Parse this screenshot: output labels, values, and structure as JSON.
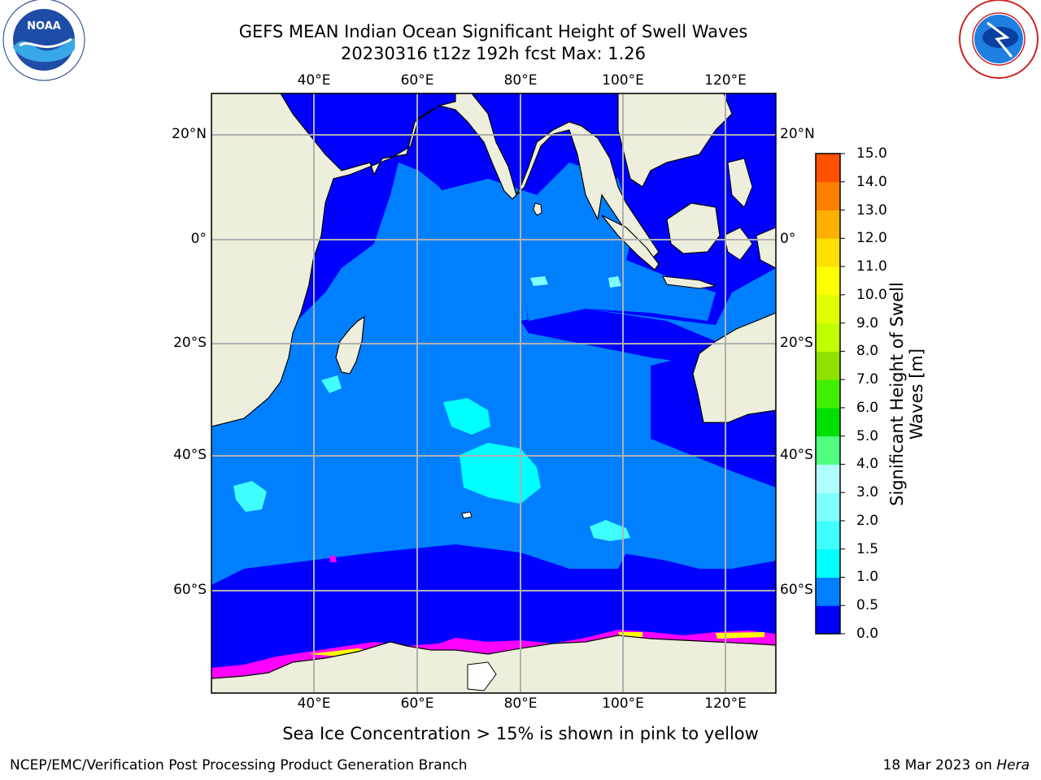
{
  "header": {
    "title_line1": "GEFS MEAN Indian Ocean Significant Height of Swell Waves",
    "title_line2": "20230316 t12z 192h fcst   Max: 1.26"
  },
  "logos": {
    "left": {
      "name": "noaa-logo",
      "text": "NOAA",
      "ring_text": "NATIONAL OCEANIC AND ATMOSPHERIC ADMINISTRATION · U.S. DEPARTMENT OF COMMERCE"
    },
    "right": {
      "name": "nws-logo",
      "ring_text": "NATIONAL WEATHER SERVICE"
    }
  },
  "map": {
    "lon_ticks": [
      "40°E",
      "60°E",
      "80°E",
      "100°E",
      "120°E"
    ],
    "lat_ticks_left": [
      "20°N",
      "0°",
      "20°S",
      "40°S",
      "60°S"
    ],
    "lat_ticks_right": [
      "20°N",
      "0°",
      "20°S",
      "40°S",
      "60°S"
    ],
    "colors": {
      "land": "#eeeedc",
      "ocean_deep": "#0000ff",
      "ocean_mid": "#0080ff",
      "ocean_high": "#00ffff",
      "ice": "#ff00ff"
    }
  },
  "colorbar": {
    "title": "Significant Height of Swell Waves [m]",
    "ticks": [
      "0.0",
      "0.5",
      "1.0",
      "1.5",
      "2.0",
      "3.0",
      "4.0",
      "5.0",
      "6.0",
      "7.0",
      "8.0",
      "9.0",
      "10.0",
      "11.0",
      "12.0",
      "13.0",
      "14.0",
      "15.0"
    ],
    "colors": [
      "#0000ff",
      "#0080ff",
      "#00ffff",
      "#40ffff",
      "#80ffff",
      "#b0ffff",
      "#50ff80",
      "#00e000",
      "#40f000",
      "#90e000",
      "#c0ff00",
      "#e0ff00",
      "#ffff00",
      "#ffe000",
      "#ffb000",
      "#ff8000",
      "#ff5000",
      "#ff2000",
      "#ff0000"
    ]
  },
  "footer": {
    "sea_ice_note": "Sea Ice Concentration > 15% is shown in pink to yellow",
    "credit": "NCEP/EMC/Verification Post Processing Product Generation Branch",
    "run_date": "18 Mar 2023 on",
    "machine": "Hera"
  }
}
